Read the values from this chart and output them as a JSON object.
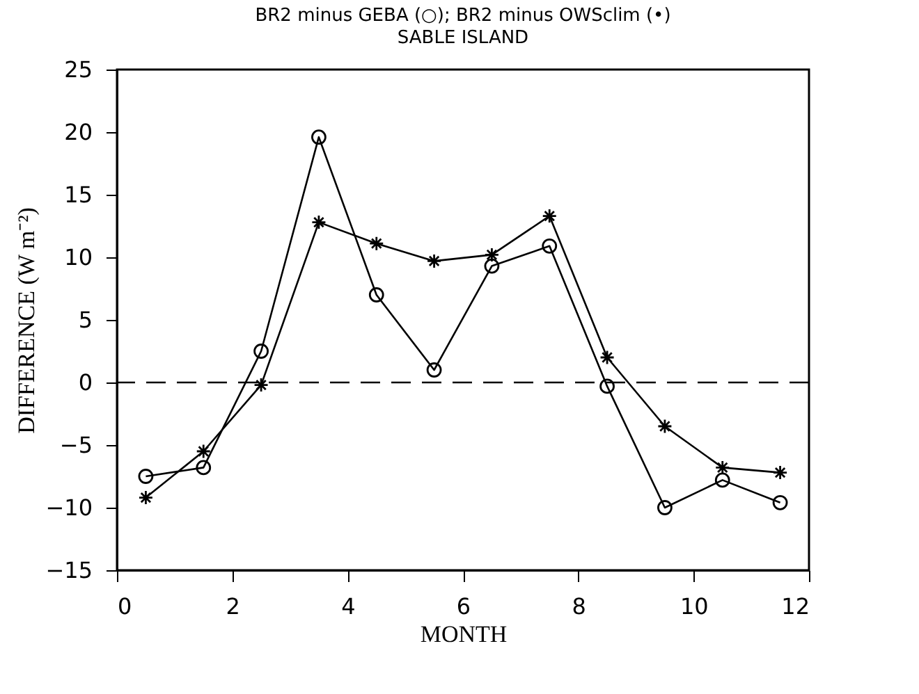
{
  "chart_data": {
    "type": "line",
    "title": "BR2 minus GEBA (○); BR2 minus OWSclim (•)",
    "subtitle": "SABLE ISLAND",
    "xlabel": "MONTH",
    "ylabel": "DIFFERENCE (W m⁻²)",
    "x": [
      0.5,
      1.5,
      2.5,
      3.5,
      4.5,
      5.5,
      6.5,
      7.5,
      8.5,
      9.5,
      10.5,
      11.5
    ],
    "series": [
      {
        "color": "#000000",
        "marker": "circle",
        "values": [
          -7.5,
          -6.8,
          2.5,
          19.6,
          7.0,
          1.0,
          9.3,
          10.9,
          -0.3,
          -10.0,
          -7.8,
          -9.6
        ]
      },
      {
        "color": "#000000",
        "marker": "cross",
        "values": [
          -9.2,
          -5.5,
          -0.2,
          12.8,
          11.1,
          9.7,
          10.2,
          13.3,
          2.0,
          -3.5,
          -6.8,
          -7.2
        ]
      }
    ],
    "xlim": [
      0,
      12
    ],
    "xticks": [
      0,
      2,
      4,
      6,
      8,
      10,
      12
    ],
    "ylim": [
      -15,
      25
    ],
    "yticks": [
      -15,
      -10,
      -5,
      0,
      5,
      10,
      15,
      20,
      25
    ],
    "ref_lines": [
      {
        "axis": "y",
        "value": 0,
        "line_style": "dashed",
        "color": "#000000"
      }
    ],
    "grid": false,
    "line_style": "solid"
  }
}
